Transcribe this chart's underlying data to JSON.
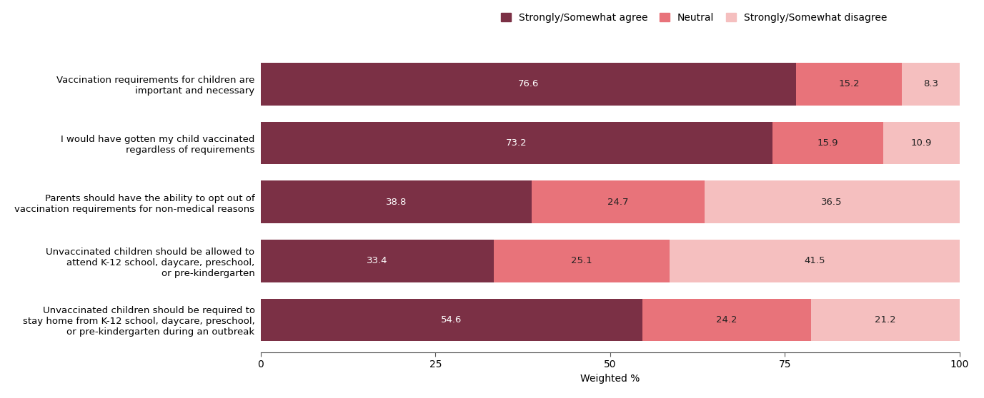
{
  "categories": [
    "Vaccination requirements for children are\nimportant and necessary",
    "I would have gotten my child vaccinated\nregardless of requirements",
    "Parents should have the ability to opt out of\nvaccination requirements for non-medical reasons",
    "Unvaccinated children should be allowed to\nattend K-12 school, daycare, preschool,\nor pre-kindergarten",
    "Unvaccinated children should be required to\nstay home from K-12 school, daycare, preschool,\nor pre-kindergarten during an outbreak"
  ],
  "agree": [
    76.6,
    73.2,
    38.8,
    33.4,
    54.6
  ],
  "neutral": [
    15.2,
    15.9,
    24.7,
    25.1,
    24.2
  ],
  "disagree": [
    8.3,
    10.9,
    36.5,
    41.5,
    21.2
  ],
  "color_agree": "#7b3045",
  "color_neutral": "#e8737a",
  "color_disagree": "#f5bfbf",
  "legend_labels": [
    "Strongly/Somewhat agree",
    "Neutral",
    "Strongly/Somewhat disagree"
  ],
  "xlabel": "Weighted %",
  "xlim": [
    0,
    100
  ],
  "xticks": [
    0,
    25,
    50,
    75,
    100
  ],
  "bar_height": 0.72,
  "label_fontsize": 9.5,
  "tick_fontsize": 10,
  "legend_fontsize": 10,
  "value_fontsize": 9.5,
  "background_color": "#ffffff"
}
